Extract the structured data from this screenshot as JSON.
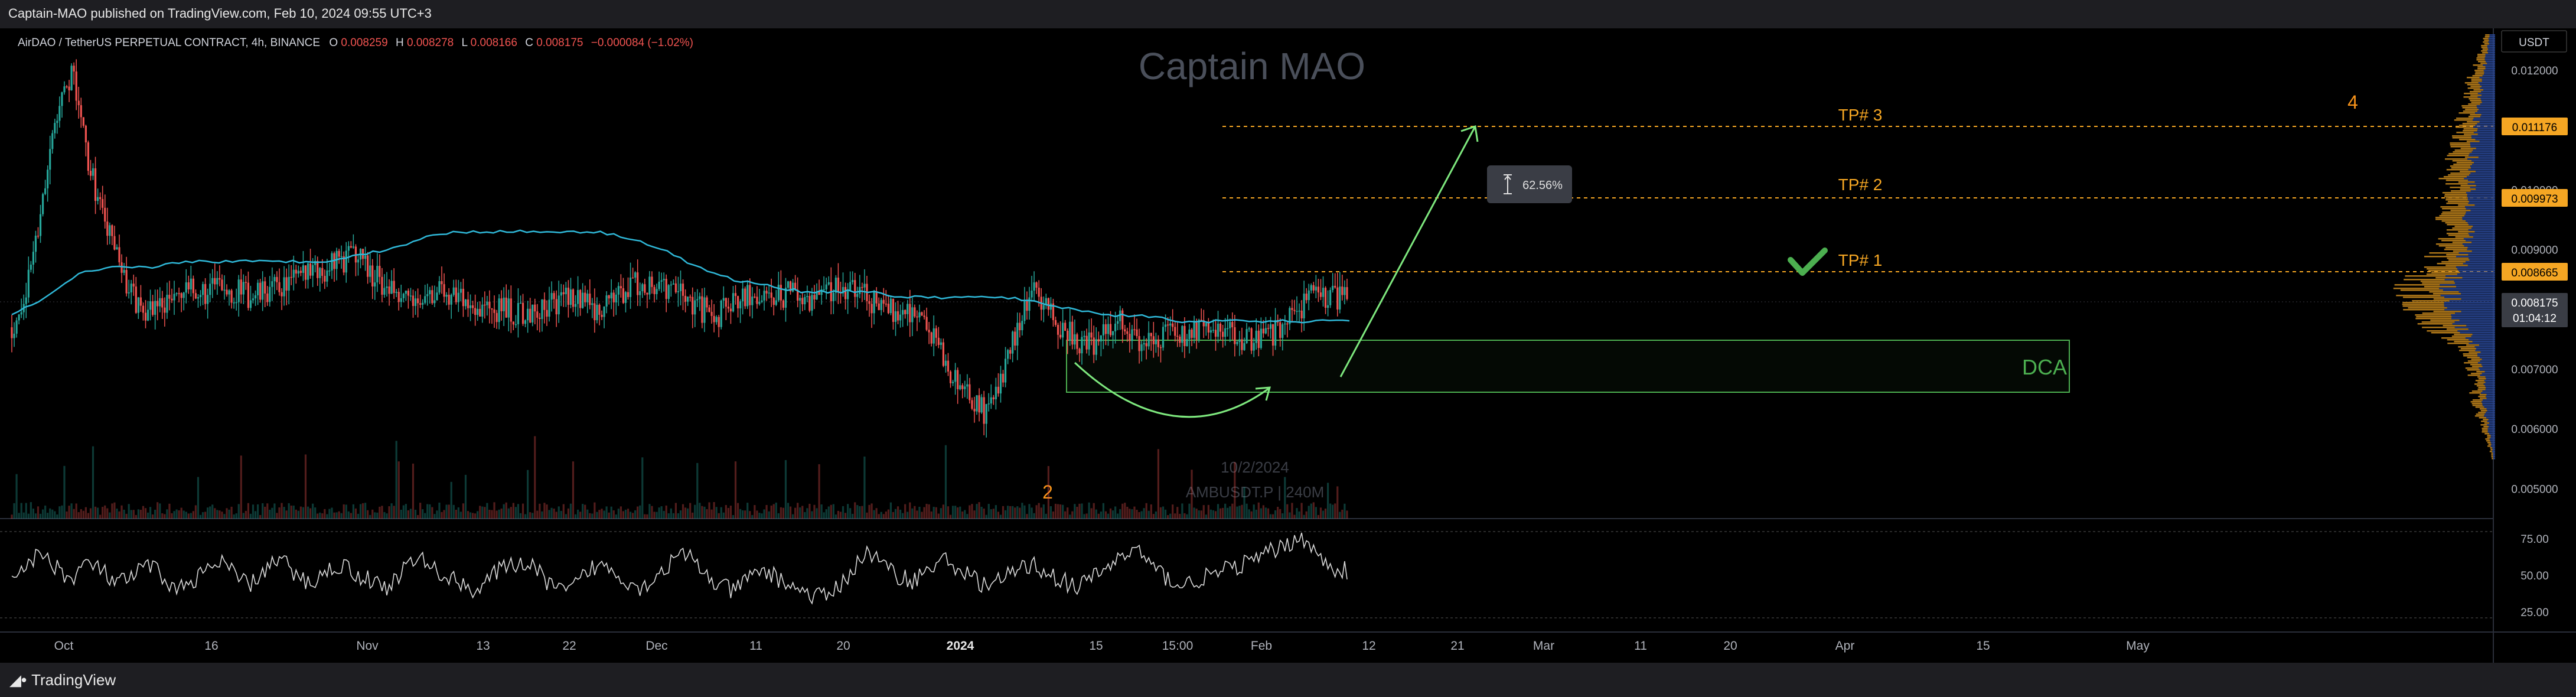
{
  "header": {
    "published": "Captain-MAO published on TradingView.com, Feb 10, 2024 09:55 UTC+3"
  },
  "footer": {
    "logo_text": "TradingView"
  },
  "legend": {
    "symbol": "AirDAO / TetherUS PERPETUAL CONTRACT, 4h, BINANCE",
    "o_label": "O",
    "o_value": "0.008259",
    "h_label": "H",
    "h_value": "0.008278",
    "l_label": "L",
    "l_value": "0.008166",
    "c_label": "C",
    "c_value": "0.008175",
    "change": "−0.000084 (−1.02%)"
  },
  "watermark": {
    "brand": "Captain MAO",
    "date": "10/2/2024",
    "symbol": "AMBUSDT.P | 240M"
  },
  "annotations": {
    "tp1": "TP# 1",
    "tp2": "TP# 2",
    "tp3": "TP# 3",
    "dca": "DCA",
    "measure": "62.56%",
    "wave2": "2",
    "wave4": "4"
  },
  "price_axis": {
    "currency": "USDT",
    "ticks": [
      "0.012000",
      "0.011000",
      "0.010000",
      "0.009000",
      "0.008000",
      "0.007000",
      "0.006000",
      "0.005000"
    ],
    "tp3_tag": "0.011176",
    "tp2_tag": "0.009973",
    "tp1_tag": "0.008665",
    "last_price": "0.008175",
    "countdown": "01:04:12"
  },
  "rsi_axis": {
    "ticks": [
      "75.00",
      "50.00",
      "25.00"
    ]
  },
  "time_axis": {
    "ticks": [
      "Oct",
      "16",
      "Nov",
      "13",
      "22",
      "Dec",
      "11",
      "20",
      "2024",
      "15",
      "15:00",
      "Feb",
      "12",
      "21",
      "Mar",
      "11",
      "20",
      "Apr",
      "15",
      "May"
    ]
  },
  "colors": {
    "up": "#26a69a",
    "down": "#ef5350",
    "vwap": "#2fb8d8",
    "tp": "#f5a623",
    "green": "#4caf50",
    "rsi": "#d8d8d8",
    "panel": "#1e1e22",
    "orange": "#f7931a"
  },
  "chart_data": {
    "type": "candlestick",
    "symbol": "AMBUSDT.P",
    "timeframe": "4h",
    "x": [
      "Oct",
      "16",
      "Nov",
      "13",
      "22",
      "Dec",
      "11",
      "20",
      "2024",
      "15",
      "15:00",
      "Feb",
      "12",
      "21",
      "Mar",
      "11",
      "20",
      "Apr",
      "15",
      "May"
    ],
    "ylim": [
      0.0045,
      0.0127
    ],
    "close_path": [
      0.0077,
      0.0083,
      0.0098,
      0.0113,
      0.012,
      0.0106,
      0.0096,
      0.0089,
      0.0082,
      0.008,
      0.0081,
      0.0082,
      0.0083,
      0.0083,
      0.0084,
      0.0083,
      0.0082,
      0.0083,
      0.0084,
      0.0085,
      0.0086,
      0.0087,
      0.0088,
      0.009,
      0.0086,
      0.0084,
      0.0083,
      0.0082,
      0.0083,
      0.0083,
      0.0082,
      0.0081,
      0.008,
      0.008,
      0.0079,
      0.008,
      0.0081,
      0.0082,
      0.0081,
      0.008,
      0.0082,
      0.0083,
      0.0085,
      0.0084,
      0.0083,
      0.0082,
      0.008,
      0.0079,
      0.0081,
      0.0082,
      0.0081,
      0.0082,
      0.0083,
      0.0082,
      0.0082,
      0.0084,
      0.0083,
      0.0082,
      0.008,
      0.008,
      0.008,
      0.0077,
      0.0072,
      0.0068,
      0.0065,
      0.0062,
      0.0068,
      0.0077,
      0.0083,
      0.008,
      0.0077,
      0.0075,
      0.0074,
      0.0076,
      0.0078,
      0.0074,
      0.0075,
      0.0076,
      0.0075,
      0.0076,
      0.0077,
      0.0076,
      0.0075,
      0.0075,
      0.0076,
      0.0078,
      0.008,
      0.0083,
      0.0082,
      0.0082
    ],
    "vwap_path": [
      0.0079,
      0.0082,
      0.0086,
      0.0087,
      0.0087,
      0.0088,
      0.0088,
      0.0088,
      0.0088,
      0.0088,
      0.0089,
      0.009,
      0.0092,
      0.0093,
      0.0093,
      0.0093,
      0.0093,
      0.0093,
      0.0092,
      0.009,
      0.0087,
      0.0085,
      0.0084,
      0.0083,
      0.0083,
      0.0083,
      0.0082,
      0.0082,
      0.0082,
      0.0082,
      0.0081,
      0.008,
      0.0079,
      0.0079,
      0.0078,
      0.0078,
      0.0078,
      0.0078,
      0.0078,
      0.0078
    ],
    "rsi_path": [
      52,
      60,
      68,
      58,
      48,
      62,
      55,
      45,
      50,
      60,
      52,
      40,
      48,
      55,
      62,
      50,
      45,
      58,
      64,
      50,
      46,
      55,
      60,
      52,
      48,
      42,
      55,
      65,
      58,
      50,
      46,
      40,
      52,
      58,
      62,
      55,
      44,
      38,
      50,
      60,
      56,
      48,
      42,
      52,
      62,
      68,
      55,
      45,
      40,
      48,
      56,
      50,
      44,
      38,
      35,
      42,
      55,
      70,
      60,
      52,
      48,
      55,
      64,
      58,
      50,
      44,
      48,
      56,
      60,
      54,
      48,
      42,
      50,
      58,
      66,
      72,
      58,
      50,
      44,
      48,
      52,
      56,
      60,
      64,
      70,
      75,
      82,
      66,
      58,
      55
    ],
    "rsi_ylim": [
      10,
      90
    ],
    "levels": {
      "tp1": 0.008665,
      "tp2": 0.009973,
      "tp3": 0.011176,
      "last": 0.008175
    },
    "dca_zone": {
      "high": 0.0074,
      "low": 0.0066
    },
    "projection_target": 0.0114,
    "projection_pct": "62.56%"
  }
}
